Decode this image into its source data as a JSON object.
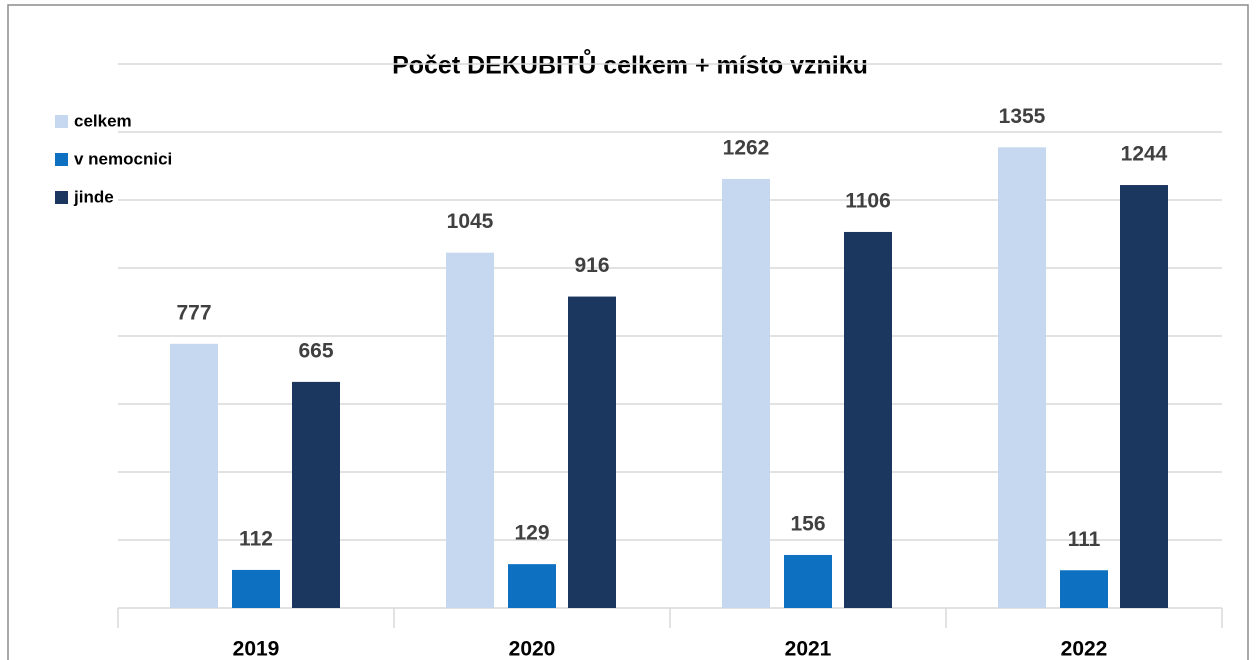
{
  "chart_data": {
    "type": "bar",
    "title": "Počet DEKUBITŮ celkem + místo vzniku",
    "categories": [
      "2019",
      "2020",
      "2021",
      "2022"
    ],
    "series": [
      {
        "name": "celkem",
        "color": "#c6d8f0",
        "values": [
          777,
          1045,
          1262,
          1355
        ]
      },
      {
        "name": "v nemocnici",
        "color": "#0e70c1",
        "values": [
          112,
          129,
          156,
          111
        ]
      },
      {
        "name": "jinde",
        "color": "#1b365f",
        "values": [
          665,
          916,
          1106,
          1244
        ]
      }
    ],
    "ylim": [
      0,
      1600
    ],
    "yticks": [
      0,
      200,
      400,
      600,
      800,
      1000,
      1200,
      1400,
      1600
    ],
    "grid": true,
    "legend": "top-left"
  }
}
